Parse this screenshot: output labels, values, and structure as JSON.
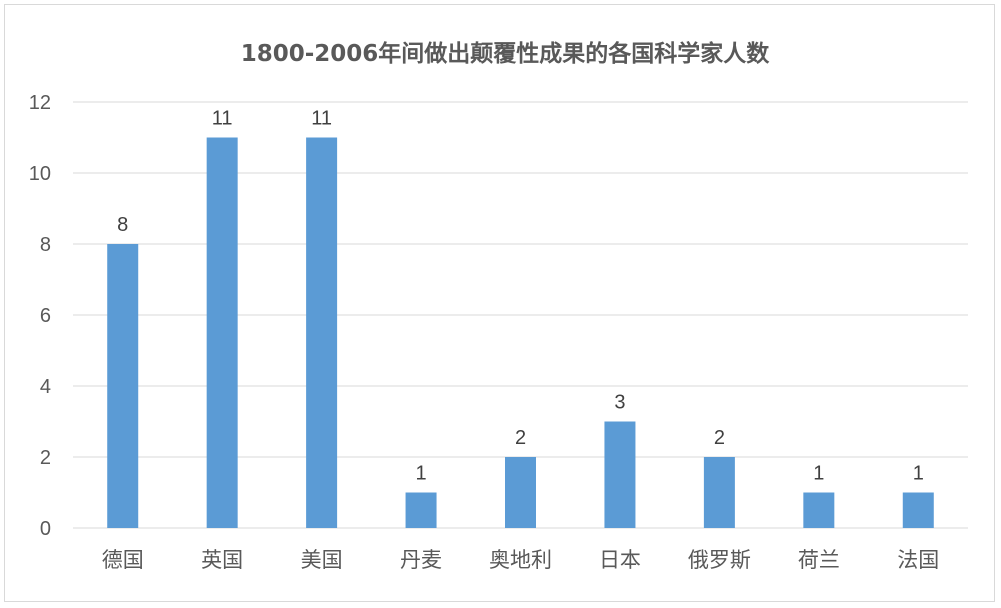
{
  "chart_data": {
    "type": "bar",
    "title": "1800-2006年间做出颠覆性成果的各国科学家人数",
    "xlabel": "",
    "ylabel": "",
    "categories": [
      "德国",
      "英国",
      "美国",
      "丹麦",
      "奥地利",
      "日本",
      "俄罗斯",
      "荷兰",
      "法国"
    ],
    "values": [
      8,
      11,
      11,
      1,
      2,
      3,
      2,
      1,
      1
    ],
    "data_labels": [
      "8",
      "11",
      "11",
      "1",
      "2",
      "3",
      "2",
      "1",
      "1"
    ],
    "ylim": [
      0,
      12
    ],
    "y_ticks": [
      0,
      2,
      4,
      6,
      8,
      10,
      12
    ],
    "y_tick_labels": [
      "0",
      "2",
      "4",
      "6",
      "8",
      "10",
      "12"
    ],
    "grid": true,
    "legend": "none",
    "colors": {
      "bar": "#5b9bd5",
      "grid": "#d9d9d9",
      "text": "#595959",
      "data_label": "#404040"
    }
  }
}
